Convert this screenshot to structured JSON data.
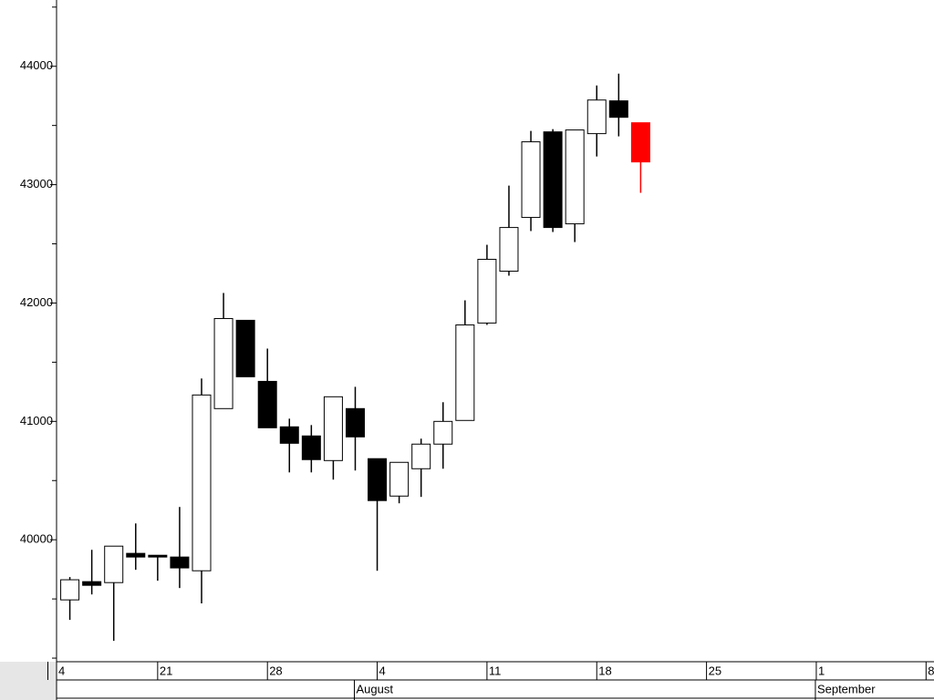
{
  "chart_data": {
    "type": "candlestick",
    "categories": [
      "4",
      null,
      null,
      null,
      null,
      "21",
      null,
      null,
      null,
      null,
      "28",
      null,
      null,
      null,
      null,
      "4",
      null,
      null,
      null,
      null,
      "11",
      null,
      null,
      null,
      null,
      "18",
      null,
      null,
      null,
      null,
      "25",
      null,
      null,
      null,
      null,
      "1",
      null,
      null,
      null,
      null,
      "8"
    ],
    "months": [
      null,
      null,
      null,
      null,
      null,
      null,
      null,
      null,
      null,
      null,
      null,
      null,
      null,
      null,
      "August",
      null,
      null,
      null,
      null,
      null,
      null,
      null,
      null,
      null,
      null,
      null,
      null,
      null,
      null,
      null,
      null,
      null,
      null,
      null,
      null,
      "September",
      null,
      null,
      null,
      null,
      null
    ],
    "open": [
      null,
      39492,
      39646,
      39638,
      39885,
      39869,
      39854,
      39738,
      41108,
      41854,
      41338,
      40954,
      40877,
      40669,
      41108,
      40685,
      40369,
      40600,
      40808,
      41008,
      41831,
      42269,
      42723,
      43446,
      42669,
      43431,
      43708,
      43523,
      null,
      null,
      null,
      null,
      null,
      null,
      null,
      null,
      null,
      null,
      null,
      null,
      null
    ],
    "high": [
      null,
      39685,
      39915,
      39946,
      40138,
      39869,
      40277,
      41362,
      42085,
      41854,
      41615,
      41023,
      40969,
      41208,
      41292,
      40685,
      40654,
      40854,
      41162,
      42023,
      42492,
      42992,
      43454,
      43469,
      43462,
      43838,
      43938,
      43523,
      null,
      null,
      null,
      null,
      null,
      null,
      null,
      null,
      null,
      null,
      null,
      null,
      null
    ],
    "low": [
      null,
      39323,
      39538,
      39146,
      39746,
      39654,
      39592,
      39462,
      41108,
      41377,
      40946,
      40569,
      40569,
      40508,
      40585,
      39738,
      40308,
      40362,
      40600,
      41008,
      41815,
      42231,
      42608,
      42600,
      42515,
      43238,
      43408,
      42931,
      null,
      null,
      null,
      null,
      null,
      null,
      null,
      null,
      null,
      null,
      null,
      null,
      null
    ],
    "close": [
      null,
      39662,
      39615,
      39946,
      39854,
      39854,
      39762,
      41223,
      41869,
      41377,
      40946,
      40815,
      40677,
      41208,
      40869,
      40331,
      40654,
      40808,
      41000,
      41815,
      42369,
      42638,
      43362,
      42638,
      43462,
      43715,
      43569,
      43192,
      null,
      null,
      null,
      null,
      null,
      null,
      null,
      null,
      null,
      null,
      null,
      null,
      null
    ],
    "up_color": "#ffffff",
    "down_color": "#000000",
    "last_color": "#ff0000",
    "ylim": [
      38985,
      44560
    ],
    "yticks": [
      40000,
      41000,
      42000,
      43000,
      44000
    ],
    "yminorticks": [
      39000,
      39500,
      40500,
      41500,
      42500,
      43500,
      44500
    ]
  }
}
